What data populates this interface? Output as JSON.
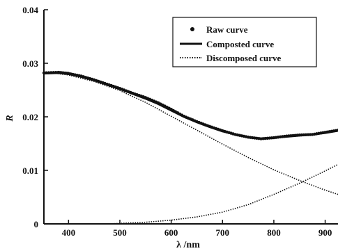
{
  "chart_data": {
    "type": "line",
    "xlabel": "λ /nm",
    "ylabel": "R",
    "xlim": [
      352,
      925
    ],
    "ylim": [
      0,
      0.04
    ],
    "x_ticks": [
      400,
      500,
      600,
      700,
      800,
      900
    ],
    "y_ticks": [
      0,
      0.01,
      0.02,
      0.03,
      0.04
    ],
    "y_tick_labels": [
      "0",
      "0.01",
      "0.02",
      "0.03",
      "0.04"
    ],
    "grid": false,
    "legend_position": "top-right",
    "legend": [
      "Raw curve",
      "Composted curve",
      "Discomposed curve"
    ],
    "series": [
      {
        "name": "Raw curve",
        "style": "dots",
        "x": [
          352,
          380,
          400,
          425,
          450,
          475,
          500,
          525,
          550,
          575,
          600,
          625,
          650,
          675,
          700,
          725,
          750,
          775,
          800,
          825,
          850,
          875,
          900,
          925
        ],
        "y": [
          0.0282,
          0.0283,
          0.0281,
          0.0276,
          0.0269,
          0.0261,
          0.0253,
          0.0244,
          0.0236,
          0.0226,
          0.0214,
          0.0201,
          0.0191,
          0.0182,
          0.0174,
          0.0167,
          0.0162,
          0.0159,
          0.0161,
          0.0164,
          0.0166,
          0.0167,
          0.0171,
          0.0175
        ]
      },
      {
        "name": "Composted curve",
        "style": "solid",
        "x": [
          352,
          380,
          400,
          425,
          450,
          475,
          500,
          525,
          550,
          575,
          600,
          625,
          650,
          675,
          700,
          725,
          750,
          775,
          800,
          825,
          850,
          875,
          900,
          925
        ],
        "y": [
          0.0281,
          0.0282,
          0.028,
          0.0275,
          0.0268,
          0.026,
          0.0252,
          0.0243,
          0.0234,
          0.0224,
          0.0212,
          0.02,
          0.019,
          0.0181,
          0.0173,
          0.0167,
          0.0162,
          0.0159,
          0.0161,
          0.0163,
          0.0165,
          0.0167,
          0.017,
          0.0174
        ]
      },
      {
        "name": "Discomposed curve",
        "style": "dotted",
        "x": [
          352,
          400,
          450,
          500,
          550,
          600,
          650,
          700,
          750,
          800,
          850,
          900,
          925
        ],
        "y": [
          0.0284,
          0.0278,
          0.0266,
          0.0249,
          0.0227,
          0.0201,
          0.0175,
          0.0149,
          0.0124,
          0.0101,
          0.0081,
          0.0063,
          0.0055
        ]
      },
      {
        "name": "Discomposed curve",
        "style": "dotted",
        "x": [
          480,
          500,
          550,
          600,
          650,
          700,
          750,
          800,
          850,
          900,
          925
        ],
        "y": [
          0.0,
          0.0001,
          0.0003,
          0.0007,
          0.0013,
          0.0022,
          0.0036,
          0.0055,
          0.0076,
          0.0099,
          0.0111
        ]
      }
    ]
  }
}
